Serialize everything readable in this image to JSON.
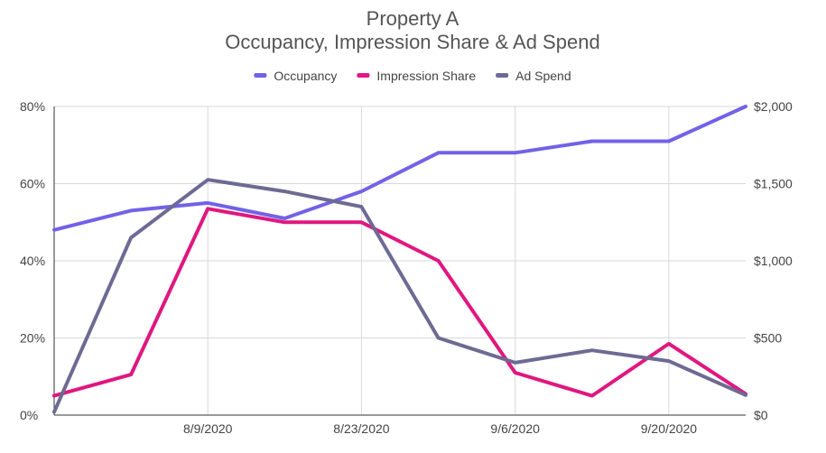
{
  "chart_data": {
    "type": "line",
    "title": "Property A",
    "subtitle": "Occupancy, Impression Share & Ad Spend",
    "legend_position": "top",
    "grid": true,
    "x_points": 10,
    "x_tick_labels": [
      {
        "index": 2,
        "label": "8/9/2020"
      },
      {
        "index": 4,
        "label": "8/23/2020"
      },
      {
        "index": 6,
        "label": "9/6/2020"
      },
      {
        "index": 8,
        "label": "9/20/2020"
      }
    ],
    "y_left": {
      "min": 0,
      "max": 80,
      "ticks": [
        0,
        20,
        40,
        60,
        80
      ],
      "tick_labels": [
        "0%",
        "20%",
        "40%",
        "60%",
        "80%"
      ]
    },
    "y_right": {
      "min": 0,
      "max": 2000,
      "ticks": [
        0,
        500,
        1000,
        1500,
        2000
      ],
      "tick_labels": [
        "$0",
        "$500",
        "$1,000",
        "$1,500",
        "$2,000"
      ]
    },
    "series": [
      {
        "name": "Occupancy",
        "axis": "left",
        "color": "#7162e8",
        "values": [
          48,
          53,
          55,
          51,
          58,
          68,
          68,
          71,
          71,
          80
        ]
      },
      {
        "name": "Impression Share",
        "axis": "left",
        "color": "#e0177f",
        "values": [
          5,
          10.5,
          53.5,
          50,
          50,
          40,
          11,
          5,
          18.5,
          5.5
        ]
      },
      {
        "name": "Ad Spend",
        "axis": "right",
        "color": "#6d6a93",
        "values": [
          20,
          1150,
          1525,
          1450,
          1350,
          500,
          340,
          420,
          350,
          130
        ]
      }
    ]
  }
}
